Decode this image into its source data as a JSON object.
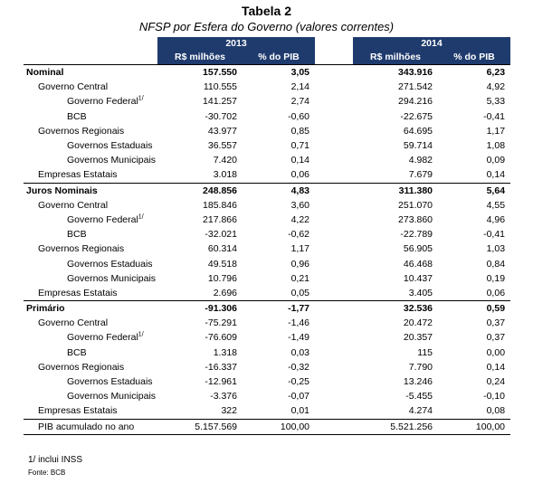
{
  "title": "Tabela 2",
  "subtitle": "NFSP por Esfera do Governo (valores correntes)",
  "years": [
    "2013",
    "2014"
  ],
  "col_headers": [
    "R$ milhões",
    "% do PIB",
    "R$ milhões",
    "% do PIB"
  ],
  "rows": [
    {
      "label": "Nominal",
      "sup": "",
      "level": 0,
      "bold": true,
      "v": [
        "157.550",
        "3,05",
        "343.916",
        "6,23"
      ]
    },
    {
      "label": "Governo Central",
      "sup": "",
      "level": 1,
      "bold": false,
      "v": [
        "110.555",
        "2,14",
        "271.542",
        "4,92"
      ]
    },
    {
      "label": "Governo Federal",
      "sup": "1/",
      "level": 2,
      "bold": false,
      "v": [
        "141.257",
        "2,74",
        "294.216",
        "5,33"
      ]
    },
    {
      "label": "BCB",
      "sup": "",
      "level": 2,
      "bold": false,
      "v": [
        "-30.702",
        "-0,60",
        "-22.675",
        "-0,41"
      ]
    },
    {
      "label": "Governos Regionais",
      "sup": "",
      "level": 1,
      "bold": false,
      "v": [
        "43.977",
        "0,85",
        "64.695",
        "1,17"
      ]
    },
    {
      "label": "Governos Estaduais",
      "sup": "",
      "level": 2,
      "bold": false,
      "v": [
        "36.557",
        "0,71",
        "59.714",
        "1,08"
      ]
    },
    {
      "label": "Governos Municipais",
      "sup": "",
      "level": 2,
      "bold": false,
      "v": [
        "7.420",
        "0,14",
        "4.982",
        "0,09"
      ]
    },
    {
      "label": "Empresas Estatais",
      "sup": "",
      "level": 1,
      "bold": false,
      "v": [
        "3.018",
        "0,06",
        "7.679",
        "0,14"
      ]
    },
    {
      "label": "Juros Nominais",
      "sup": "",
      "level": 0,
      "bold": true,
      "v": [
        "248.856",
        "4,83",
        "311.380",
        "5,64"
      ]
    },
    {
      "label": "Governo Central",
      "sup": "",
      "level": 1,
      "bold": false,
      "v": [
        "185.846",
        "3,60",
        "251.070",
        "4,55"
      ]
    },
    {
      "label": "Governo Federal",
      "sup": "1/",
      "level": 2,
      "bold": false,
      "v": [
        "217.866",
        "4,22",
        "273.860",
        "4,96"
      ]
    },
    {
      "label": "BCB",
      "sup": "",
      "level": 2,
      "bold": false,
      "v": [
        "-32.021",
        "-0,62",
        "-22.789",
        "-0,41"
      ]
    },
    {
      "label": "Governos Regionais",
      "sup": "",
      "level": 1,
      "bold": false,
      "v": [
        "60.314",
        "1,17",
        "56.905",
        "1,03"
      ]
    },
    {
      "label": "Governos Estaduais",
      "sup": "",
      "level": 2,
      "bold": false,
      "v": [
        "49.518",
        "0,96",
        "46.468",
        "0,84"
      ]
    },
    {
      "label": "Governos Municipais",
      "sup": "",
      "level": 2,
      "bold": false,
      "v": [
        "10.796",
        "0,21",
        "10.437",
        "0,19"
      ]
    },
    {
      "label": "Empresas Estatais",
      "sup": "",
      "level": 1,
      "bold": false,
      "v": [
        "2.696",
        "0,05",
        "3.405",
        "0,06"
      ]
    },
    {
      "label": "Primário",
      "sup": "",
      "level": 0,
      "bold": true,
      "v": [
        "-91.306",
        "-1,77",
        "32.536",
        "0,59"
      ]
    },
    {
      "label": "Governo Central",
      "sup": "",
      "level": 1,
      "bold": false,
      "v": [
        "-75.291",
        "-1,46",
        "20.472",
        "0,37"
      ]
    },
    {
      "label": "Governo Federal",
      "sup": "1/",
      "level": 2,
      "bold": false,
      "v": [
        "-76.609",
        "-1,49",
        "20.357",
        "0,37"
      ]
    },
    {
      "label": "BCB",
      "sup": "",
      "level": 2,
      "bold": false,
      "v": [
        "1.318",
        "0,03",
        "115",
        "0,00"
      ]
    },
    {
      "label": "Governos Regionais",
      "sup": "",
      "level": 1,
      "bold": false,
      "v": [
        "-16.337",
        "-0,32",
        "7.790",
        "0,14"
      ]
    },
    {
      "label": "Governos Estaduais",
      "sup": "",
      "level": 2,
      "bold": false,
      "v": [
        "-12.961",
        "-0,25",
        "13.246",
        "0,24"
      ]
    },
    {
      "label": "Governos Municipais",
      "sup": "",
      "level": 2,
      "bold": false,
      "v": [
        "-3.376",
        "-0,07",
        "-5.455",
        "-0,10"
      ]
    },
    {
      "label": "Empresas Estatais",
      "sup": "",
      "level": 1,
      "bold": false,
      "v": [
        "322",
        "0,01",
        "4.274",
        "0,08"
      ]
    },
    {
      "label": "PIB acumulado no ano",
      "sup": "",
      "level": 1,
      "bold": false,
      "v": [
        "5.157.569",
        "100,00",
        "5.521.256",
        "100,00"
      ]
    }
  ],
  "footnote": "1/ inclui INSS",
  "source": "Fonte: BCB",
  "colors": {
    "header_bg": "#1f3b6e",
    "header_text": "#ffffff"
  }
}
